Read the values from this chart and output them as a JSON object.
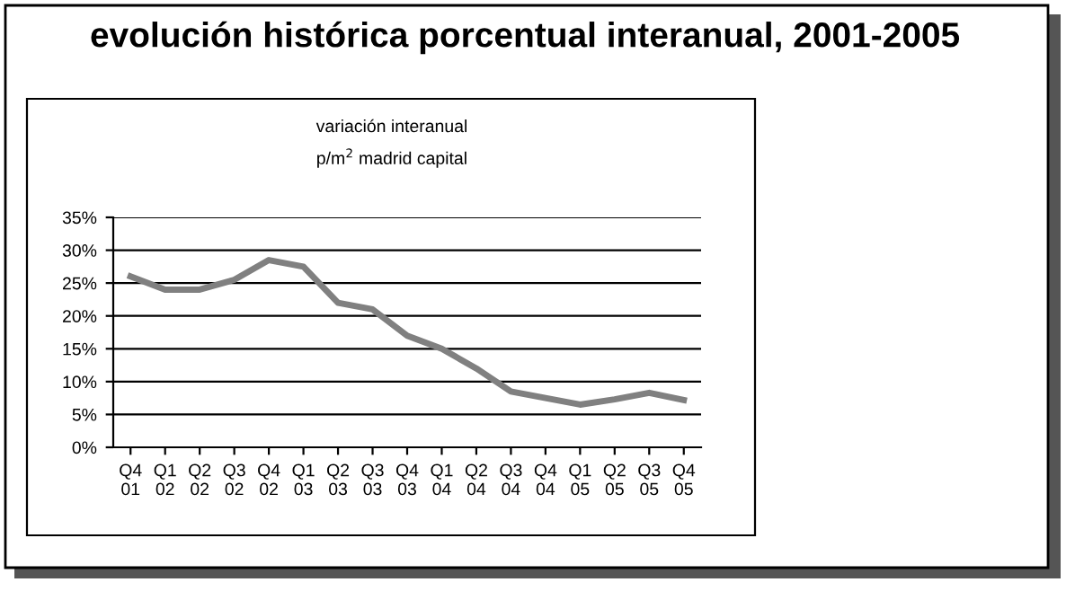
{
  "chart_data": {
    "type": "line",
    "title": "evolución histórica porcentual interanual, 2001-2005",
    "subtitle": "variación interanual\np/m$^{2}$ madrid capital",
    "categories": [
      "Q4\n01",
      "Q1\n02",
      "Q2\n02",
      "Q3\n02",
      "Q4\n02",
      "Q1\n03",
      "Q2\n03",
      "Q3\n03",
      "Q4\n03",
      "Q1\n04",
      "Q2\n04",
      "Q3\n04",
      "Q4\n04",
      "Q1\n05",
      "Q2\n05",
      "Q3\n05",
      "Q4\n05"
    ],
    "series": [
      {
        "color": "#808080",
        "values": [
          26,
          24,
          24,
          25.5,
          28.5,
          27.5,
          22,
          21,
          17,
          15,
          12,
          8.5,
          7.5,
          6.5,
          7.3,
          8.3,
          7.2
        ]
      }
    ],
    "ylim": [
      0,
      35
    ],
    "yticks": [
      {
        "value": 0,
        "label": "0%"
      },
      {
        "value": 5,
        "label": "5%"
      },
      {
        "value": 10,
        "label": "10%"
      },
      {
        "value": 15,
        "label": "15%"
      },
      {
        "value": 20,
        "label": "20%"
      },
      {
        "value": 25,
        "label": "25%"
      },
      {
        "value": 30,
        "label": "30%"
      },
      {
        "value": 35,
        "label": "35%"
      }
    ],
    "grid": "y",
    "legend": false,
    "marker": "none",
    "line_style": "solid"
  }
}
